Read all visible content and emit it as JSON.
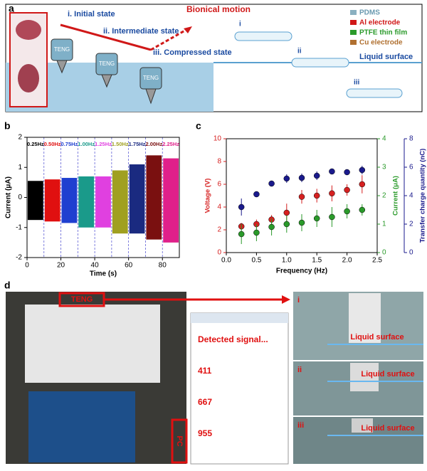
{
  "panel_a": {
    "label": "a",
    "states": [
      "i. Initial state",
      "ii. Intermediate state",
      "iii. Compressed state"
    ],
    "motion": "Bionical motion",
    "devices": [
      "TENG",
      "TENG",
      "TENG"
    ],
    "legend": [
      "PDMS",
      "Al electrode",
      "PTFE thin film",
      "Cu electrode"
    ],
    "stages": [
      "i",
      "ii",
      "iii"
    ],
    "surface": "Liquid surface"
  },
  "chart_data": [
    {
      "type": "band",
      "panel_label": "b",
      "x_label": "Time (s)",
      "y_label": "Current (μA)",
      "xlim": [
        0,
        90
      ],
      "xticks": [
        0,
        20,
        40,
        60,
        80
      ],
      "ylim": [
        -2,
        2
      ],
      "yticks": [
        -2,
        -1,
        0,
        1,
        2
      ],
      "dividers": [
        10,
        20,
        30,
        40,
        50,
        60,
        70,
        80
      ],
      "series": [
        {
          "name": "0.25Hz",
          "color": "#000000",
          "x": [
            0,
            10
          ],
          "values": [
            -0.75,
            0.55
          ]
        },
        {
          "name": "0.50Hz",
          "color": "#e01010",
          "x": [
            10,
            20
          ],
          "values": [
            -0.8,
            0.6
          ]
        },
        {
          "name": "0.75Hz",
          "color": "#1f3fd0",
          "x": [
            20,
            30
          ],
          "values": [
            -0.85,
            0.65
          ]
        },
        {
          "name": "1.00Hz",
          "color": "#1a9a8a",
          "x": [
            30,
            40
          ],
          "values": [
            -1.0,
            0.7
          ]
        },
        {
          "name": "1.25Hz",
          "color": "#e040e0",
          "x": [
            40,
            50
          ],
          "values": [
            -1.0,
            0.7
          ]
        },
        {
          "name": "1.50Hz",
          "color": "#a0a020",
          "x": [
            50,
            60
          ],
          "values": [
            -1.2,
            0.9
          ]
        },
        {
          "name": "1.75Hz",
          "color": "#1a2a80",
          "x": [
            60,
            70
          ],
          "values": [
            -1.2,
            1.1
          ]
        },
        {
          "name": "2.00Hz",
          "color": "#7a1010",
          "x": [
            70,
            80
          ],
          "values": [
            -1.4,
            1.4
          ]
        },
        {
          "name": "2.25Hz",
          "color": "#e0208a",
          "x": [
            80,
            90
          ],
          "values": [
            -1.5,
            1.3
          ]
        }
      ]
    },
    {
      "type": "scatter",
      "panel_label": "c",
      "x_label": "Frequency (Hz)",
      "y_label": "Voltage (V)",
      "y2_label": "Current (μA)",
      "y3_label": "Transfer charge quantity (nC)",
      "x": [
        0.25,
        0.5,
        0.75,
        1.0,
        1.25,
        1.5,
        1.75,
        2.0,
        2.25
      ],
      "xlim": [
        0,
        2.5
      ],
      "xticks": [
        {
          "value": 0,
          "label": "0.0"
        },
        0.5,
        {
          "value": 1,
          "label": "1.0"
        },
        1.5,
        {
          "value": 2,
          "label": "2.0"
        },
        2.5
      ],
      "ylim": [
        0,
        10
      ],
      "yticks": [
        0,
        2,
        4,
        6,
        8,
        10
      ],
      "y2lim": [
        0,
        4
      ],
      "y2ticks": [
        0,
        1,
        2,
        3,
        4
      ],
      "y3lim": [
        0,
        8
      ],
      "y3ticks": [
        0,
        2,
        4,
        6,
        8
      ],
      "series": [
        {
          "name": "Voltage",
          "color": "#d62020",
          "values": [
            2.3,
            2.5,
            2.9,
            3.5,
            4.9,
            5.0,
            5.2,
            5.5,
            6.0
          ],
          "errors": [
            0.3,
            0.4,
            0.4,
            0.8,
            0.6,
            0.6,
            0.7,
            0.5,
            0.8
          ]
        },
        {
          "name": "Current",
          "color": "#2a9a2a",
          "axis": "y2",
          "values": [
            0.65,
            0.7,
            0.9,
            1.0,
            1.05,
            1.2,
            1.25,
            1.45,
            1.5
          ],
          "errors": [
            0.35,
            0.3,
            0.3,
            0.3,
            0.3,
            0.3,
            0.35,
            0.25,
            0.2
          ]
        },
        {
          "name": "Charge",
          "color": "#1a1a8c",
          "axis": "y3",
          "values": [
            3.2,
            4.1,
            4.85,
            5.2,
            5.25,
            5.4,
            5.7,
            5.65,
            5.8
          ],
          "errors": [
            0.6,
            0.2,
            0.2,
            0.3,
            0.3,
            0.3,
            0.2,
            0.2,
            0.3
          ]
        }
      ]
    }
  ],
  "panel_d": {
    "label": "d",
    "teng": "TENG",
    "pc": "PC",
    "monitor": "Detected signal...",
    "signals": [
      "411",
      "667",
      "955"
    ],
    "stages": [
      "i",
      "ii",
      "iii"
    ],
    "surface": "Liquid surface"
  }
}
